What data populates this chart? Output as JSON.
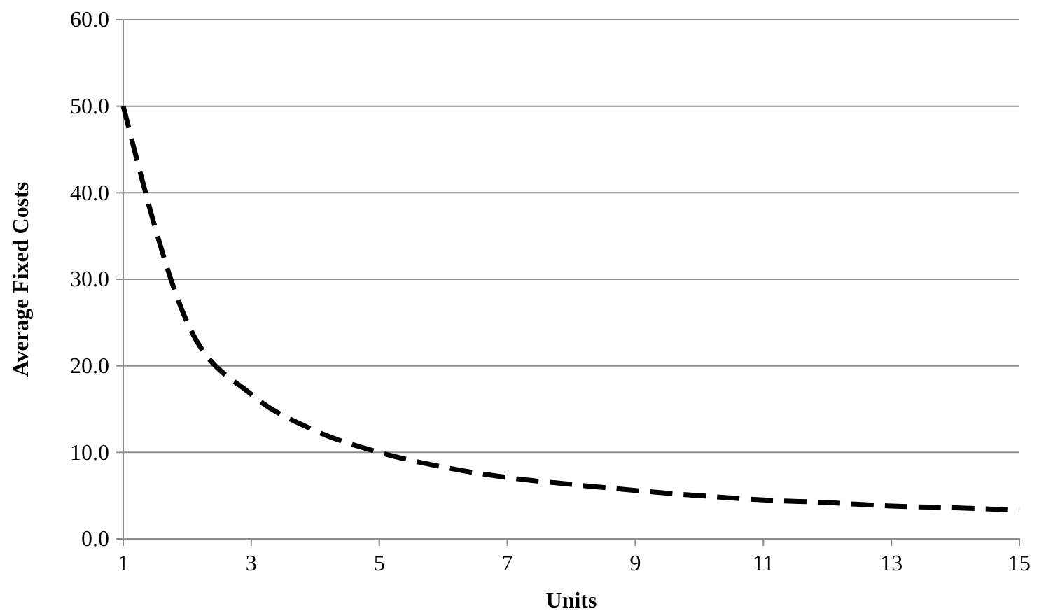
{
  "chart_data": {
    "type": "line",
    "xlabel": "Units",
    "ylabel": "Average Fixed Costs",
    "x": [
      1,
      2,
      3,
      4,
      5,
      6,
      7,
      8,
      9,
      10,
      11,
      12,
      13,
      14,
      15
    ],
    "series": [
      {
        "color": "#000000",
        "line_style": "dashed",
        "values": [
          50,
          25,
          16.7,
          12.5,
          10,
          8.3,
          7.1,
          6.3,
          5.6,
          5,
          4.5,
          4.2,
          3.8,
          3.6,
          3.3
        ]
      }
    ],
    "xlim": [
      1,
      15
    ],
    "xticks": [
      1,
      3,
      5,
      7,
      9,
      11,
      13,
      15
    ],
    "ylim": [
      0,
      60
    ],
    "yticks": [
      {
        "value": 0,
        "label": "0.0"
      },
      {
        "value": 10,
        "label": "10.0"
      },
      {
        "value": 20,
        "label": "20.0"
      },
      {
        "value": 30,
        "label": "30.0"
      },
      {
        "value": 40,
        "label": "40.0"
      },
      {
        "value": 50,
        "label": "50.0"
      },
      {
        "value": 60,
        "label": "60.0"
      }
    ],
    "grid": "y",
    "marker": "none"
  }
}
